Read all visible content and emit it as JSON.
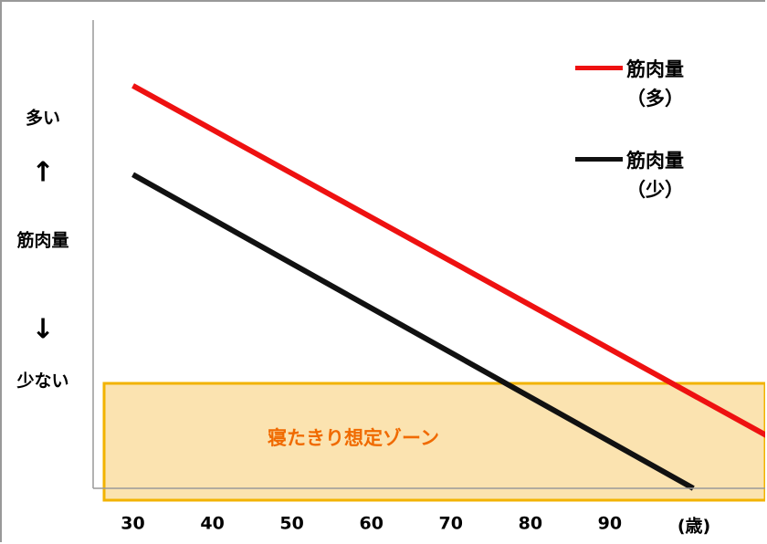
{
  "chart_data": {
    "type": "line",
    "x_unit_label": "(歳)",
    "y_labels": [
      "多い",
      "↑",
      "筋肉量",
      "↓",
      "少ない"
    ],
    "zone_label": "寝たきり想定ゾーン",
    "xlim": [
      25,
      110
    ],
    "xticks": [
      30,
      40,
      50,
      60,
      70,
      80,
      90
    ],
    "ylim": [
      0,
      100
    ],
    "series": [
      {
        "name": "筋肉量（多）",
        "color": "#ee1111",
        "x": [
          30,
          110
        ],
        "values": [
          86,
          11
        ]
      },
      {
        "name": "筋肉量（少）",
        "color": "#111111",
        "x": [
          30,
          100.5
        ],
        "values": [
          67,
          0
        ]
      }
    ]
  }
}
